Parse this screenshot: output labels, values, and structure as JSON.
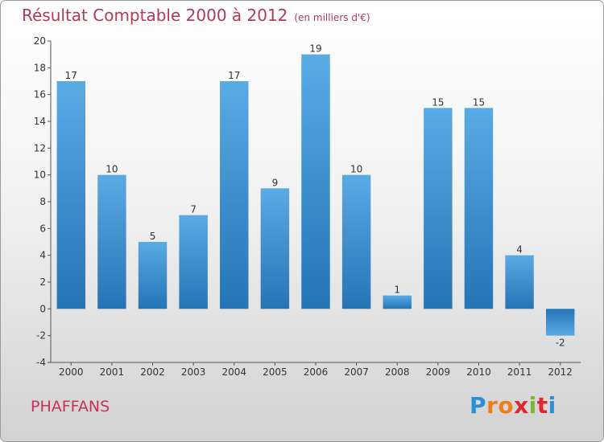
{
  "title": "Résultat Comptable 2000 à 2012",
  "subtitle": "(en milliers d'€)",
  "commune": "PHAFFANS",
  "logo": {
    "letters": [
      "P",
      "r",
      "o",
      "x",
      "i",
      "t",
      "i"
    ],
    "colors": [
      "#2a8fd6",
      "#f07d1a",
      "#f07d1a",
      "#e0262f",
      "#7ab82d",
      "#e0262f",
      "#2a8fd6"
    ]
  },
  "chart_data": {
    "type": "bar",
    "title": "Résultat Comptable 2000 à 2012",
    "subtitle": "(en milliers d'€)",
    "categories": [
      "2000",
      "2001",
      "2002",
      "2003",
      "2004",
      "2005",
      "2006",
      "2007",
      "2008",
      "2009",
      "2010",
      "2011",
      "2012"
    ],
    "values": [
      17,
      10,
      5,
      7,
      17,
      9,
      19,
      10,
      1,
      15,
      15,
      4,
      -2
    ],
    "value_labels": [
      "17",
      "10",
      "5",
      "7",
      "17",
      "9",
      "19",
      "10",
      "1",
      "15",
      "15",
      "4",
      "-2"
    ],
    "yticks": [
      -4,
      -2,
      0,
      2,
      4,
      6,
      8,
      10,
      12,
      14,
      16,
      18,
      20
    ],
    "ytick_labels": [
      "-4",
      "-2",
      "0",
      "2",
      "4",
      "6",
      "8",
      "10",
      "12",
      "14",
      "16",
      "18",
      "20"
    ],
    "ylim": [
      -4,
      20
    ],
    "grid": false,
    "bar_color": "#3a8fd0"
  }
}
